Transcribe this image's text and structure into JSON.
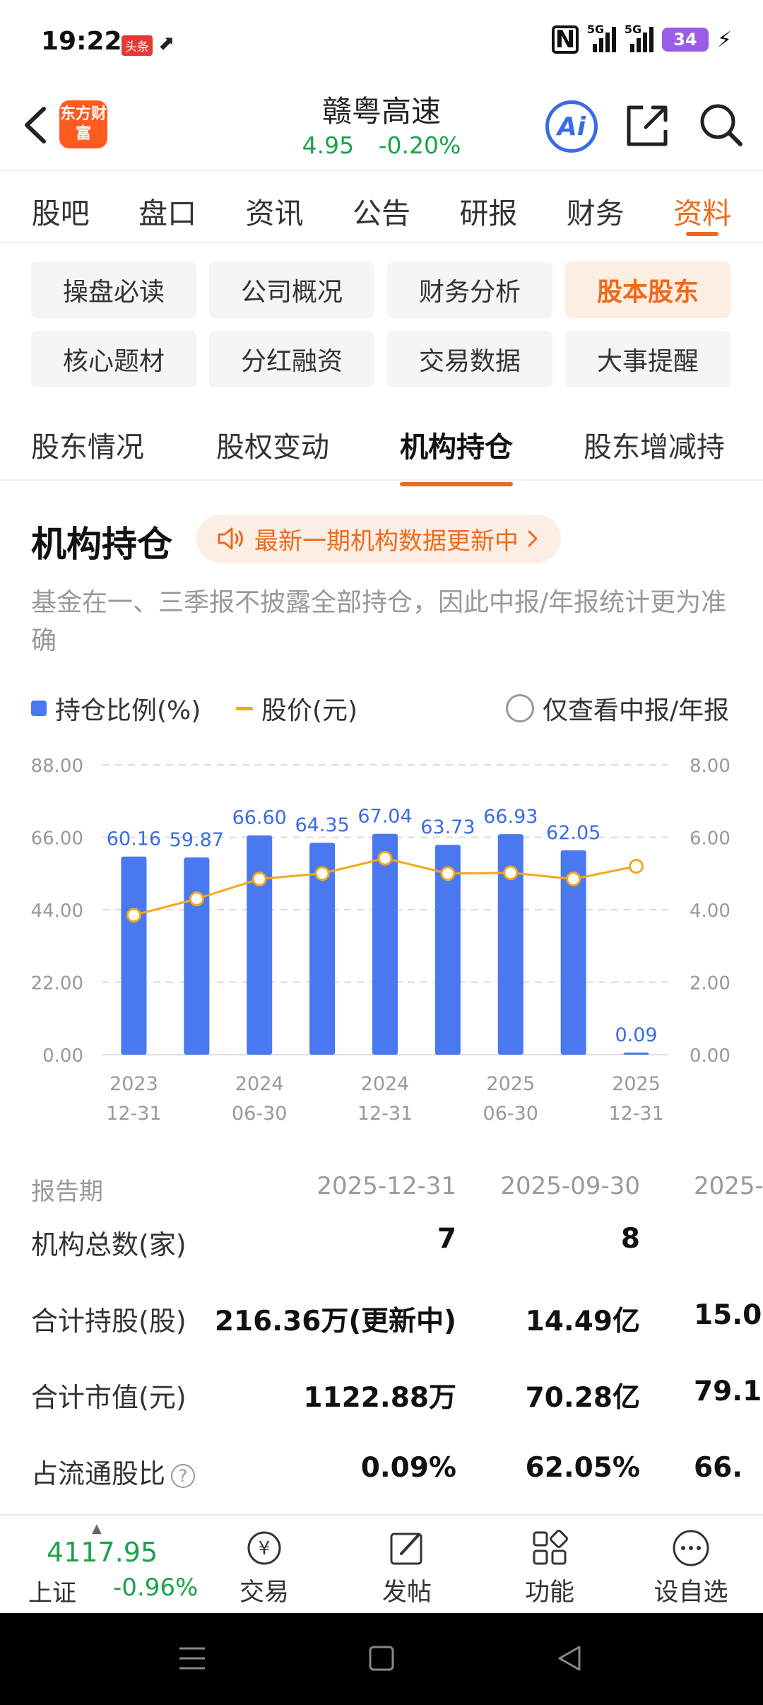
{
  "status": {
    "time": "19:22",
    "badge": "头条",
    "network_1": "5G",
    "network_2": "5G",
    "battery": "34"
  },
  "header": {
    "logo_text": "东方财富",
    "stock_name": "赣粤高速",
    "price": "4.95",
    "change": "-0.20%",
    "ai_label": "Ai"
  },
  "main_tabs": [
    "股吧",
    "盘口",
    "资讯",
    "公告",
    "研报",
    "财务",
    "资料"
  ],
  "sub_tabs": [
    "操盘必读",
    "公司概况",
    "财务分析",
    "股本股东",
    "核心题材",
    "分红融资",
    "交易数据",
    "大事提醒"
  ],
  "section_tabs": [
    "股东情况",
    "股权变动",
    "机构持仓",
    "股东增减持"
  ],
  "section": {
    "title": "机构持仓",
    "update_notice": "最新一期机构数据更新中",
    "note": "基金在一、三季报不披露全部持仓，因此中报/年报统计更为准确"
  },
  "legend": {
    "bar": "持仓比例(%)",
    "line": "股价(元)",
    "filter": "仅查看中报/年报"
  },
  "chart_data": {
    "type": "bar",
    "categories": [
      "2023-12-31",
      "2024-03-31",
      "2024-06-30",
      "2024-09-30",
      "2024-12-31",
      "2025-03-31",
      "2025-06-30",
      "2025-09-30",
      "2025-12-31"
    ],
    "x_tick_labels": [
      {
        "top": "2023",
        "bottom": "12-31"
      },
      {
        "top": "2024",
        "bottom": "06-30"
      },
      {
        "top": "2024",
        "bottom": "12-31"
      },
      {
        "top": "2025",
        "bottom": "06-30"
      },
      {
        "top": "2025",
        "bottom": "12-31"
      }
    ],
    "series": [
      {
        "name": "持仓比例(%)",
        "type": "bar",
        "axis": "left",
        "color": "#4a78f0",
        "values": [
          60.16,
          59.87,
          66.6,
          64.35,
          67.04,
          63.73,
          66.93,
          62.05,
          0.09
        ],
        "labels": [
          "60.16",
          "59.87",
          "66.60",
          "64.35",
          "67.04",
          "63.73",
          "66.93",
          "62.05",
          "0.09"
        ]
      },
      {
        "name": "股价(元)",
        "type": "line",
        "axis": "right",
        "color": "#f3a81a",
        "values": [
          3.85,
          4.3,
          4.85,
          5.0,
          5.42,
          5.0,
          5.02,
          4.85,
          5.2
        ]
      }
    ],
    "y_left": {
      "ylim": [
        0,
        88
      ],
      "ticks": [
        "0.00",
        "22.00",
        "44.00",
        "66.00",
        "88.00"
      ]
    },
    "y_right": {
      "ylim": [
        0,
        8
      ],
      "ticks": [
        "0.00",
        "2.00",
        "4.00",
        "6.00",
        "8.00"
      ]
    },
    "grid": true
  },
  "table": {
    "header": {
      "label": "报告期",
      "c1": "2025-12-31",
      "c2": "2025-09-30",
      "c3": "2025-0"
    },
    "rows": [
      {
        "label": "机构总数(家)",
        "c1": "7",
        "c2": "8",
        "c3": ""
      },
      {
        "label": "合计持股(股)",
        "c1": "216.36万(更新中)",
        "c2": "14.49亿",
        "c3": "15.0"
      },
      {
        "label": "合计市值(元)",
        "c1": "1122.88万",
        "c2": "70.28亿",
        "c3": "79.1"
      },
      {
        "label": "占流通股比",
        "c1": "0.09%",
        "c2": "62.05%",
        "c3": "66."
      }
    ]
  },
  "bottom_bar": {
    "index_value": "4117.95",
    "index_name": "上证",
    "index_change": "-0.96%",
    "tools": [
      "交易",
      "发帖",
      "功能",
      "设自选"
    ]
  },
  "colors": {
    "accent": "#ee6a1a",
    "up_down_green": "#1aa34a",
    "bar_blue": "#4a78f0",
    "line_orange": "#f3a81a"
  }
}
